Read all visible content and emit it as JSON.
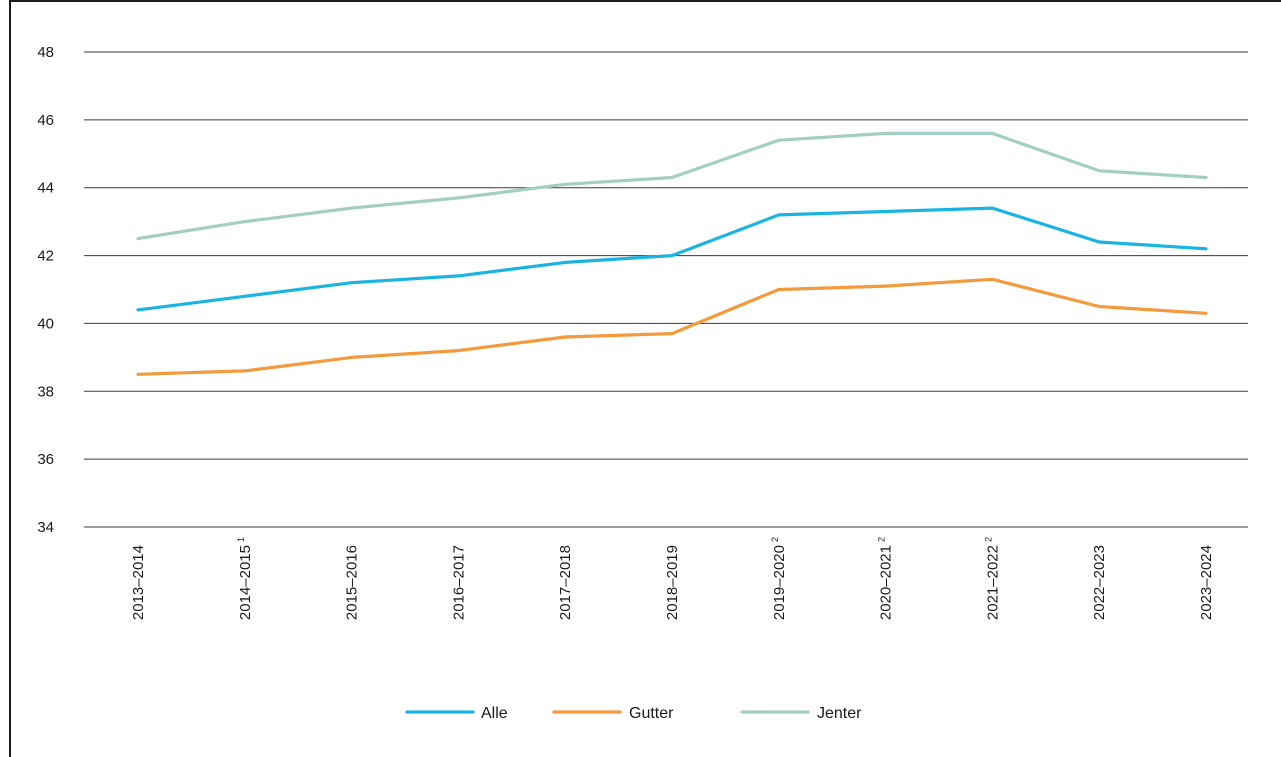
{
  "chart_data": {
    "type": "line",
    "title": "",
    "xlabel": "",
    "ylabel": "",
    "ylim": [
      34,
      48
    ],
    "yticks": [
      34,
      36,
      38,
      40,
      42,
      44,
      46,
      48
    ],
    "grid": "horizontal",
    "legend_position": "bottom-center",
    "categories": [
      {
        "label": "2013–2014",
        "sup": ""
      },
      {
        "label": "2014–2015",
        "sup": "1"
      },
      {
        "label": "2015–2016",
        "sup": ""
      },
      {
        "label": "2016–2017",
        "sup": ""
      },
      {
        "label": "2017–2018",
        "sup": ""
      },
      {
        "label": "2018–2019",
        "sup": ""
      },
      {
        "label": "2019–2020",
        "sup": "2"
      },
      {
        "label": "2020–2021",
        "sup": "2"
      },
      {
        "label": "2021–2022",
        "sup": "2"
      },
      {
        "label": "2022–2023",
        "sup": ""
      },
      {
        "label": "2023–2024",
        "sup": ""
      }
    ],
    "series": [
      {
        "name": "Alle",
        "color": "#1ab4e3",
        "values": [
          40.4,
          40.8,
          41.2,
          41.4,
          41.8,
          42.0,
          43.2,
          43.3,
          43.4,
          42.4,
          42.2
        ]
      },
      {
        "name": "Gutter",
        "color": "#f39a3d",
        "values": [
          38.5,
          38.6,
          39.0,
          39.2,
          39.6,
          39.7,
          41.0,
          41.1,
          41.3,
          40.5,
          40.3
        ]
      },
      {
        "name": "Jenter",
        "color": "#a3cfc0",
        "values": [
          42.5,
          43.0,
          43.4,
          43.7,
          44.1,
          44.3,
          45.4,
          45.6,
          45.6,
          44.5,
          44.3
        ]
      }
    ]
  }
}
